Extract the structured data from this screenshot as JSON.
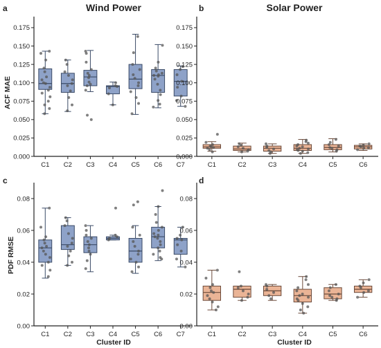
{
  "colors": {
    "wind_box": "#8ea2c8",
    "wind_edge": "#3a4a66",
    "solar_box": "#eab496",
    "solar_edge": "#6b4a3a",
    "point": "#555555"
  },
  "chart_data": [
    {
      "type": "box",
      "letter": "a",
      "title": "Wind Power",
      "ylabel": "ACF MAE",
      "xlabel": "",
      "ylim": [
        0,
        0.19
      ],
      "yticks": [
        "0.000",
        "0.025",
        "0.050",
        "0.075",
        "0.100",
        "0.125",
        "0.150",
        "0.175"
      ],
      "categories": [
        "C1",
        "C2",
        "C3",
        "C4",
        "C5",
        "C6",
        "C7"
      ],
      "style": "wind",
      "boxes": [
        {
          "min": 0.058,
          "q1": 0.091,
          "median": 0.099,
          "q3": 0.119,
          "max": 0.143,
          "points": [
            0.143,
            0.14,
            0.131,
            0.12,
            0.115,
            0.108,
            0.104,
            0.1,
            0.099,
            0.094,
            0.09,
            0.086,
            0.081,
            0.075,
            0.07,
            0.065,
            0.058
          ]
        },
        {
          "min": 0.061,
          "q1": 0.087,
          "median": 0.099,
          "q3": 0.113,
          "max": 0.131,
          "points": [
            0.131,
            0.125,
            0.115,
            0.11,
            0.104,
            0.099,
            0.096,
            0.089,
            0.08,
            0.07,
            0.062
          ]
        },
        {
          "min": 0.088,
          "q1": 0.096,
          "median": 0.108,
          "q3": 0.117,
          "max": 0.144,
          "points": [
            0.143,
            0.14,
            0.128,
            0.118,
            0.113,
            0.11,
            0.107,
            0.101,
            0.098,
            0.096,
            0.09,
            0.056,
            0.05
          ]
        },
        {
          "min": 0.07,
          "q1": 0.085,
          "median": 0.095,
          "q3": 0.096,
          "max": 0.101,
          "points": [
            0.1,
            0.096,
            0.095,
            0.093,
            0.085,
            0.07
          ]
        },
        {
          "min": 0.057,
          "q1": 0.092,
          "median": 0.105,
          "q3": 0.125,
          "max": 0.166,
          "points": [
            0.163,
            0.141,
            0.125,
            0.118,
            0.111,
            0.106,
            0.1,
            0.096,
            0.088,
            0.08,
            0.072,
            0.058
          ]
        },
        {
          "min": 0.066,
          "q1": 0.087,
          "median": 0.11,
          "q3": 0.118,
          "max": 0.152,
          "points": [
            0.151,
            0.128,
            0.12,
            0.116,
            0.113,
            0.111,
            0.11,
            0.109,
            0.105,
            0.098,
            0.09,
            0.084,
            0.076,
            0.071,
            0.067
          ]
        },
        {
          "min": 0.068,
          "q1": 0.082,
          "median": 0.102,
          "q3": 0.118,
          "max": 0.123,
          "points": [
            0.122,
            0.118,
            0.111,
            0.102,
            0.094,
            0.082,
            0.076,
            0.068
          ]
        }
      ]
    },
    {
      "type": "box",
      "letter": "b",
      "title": "Solar Power",
      "ylabel": "",
      "xlabel": "",
      "ylim": [
        0,
        0.19
      ],
      "yticks": [
        "0.000",
        "0.025",
        "0.050",
        "0.075",
        "0.100",
        "0.125",
        "0.150",
        "0.175"
      ],
      "categories": [
        "C1",
        "C2",
        "C3",
        "C4",
        "C5",
        "C6"
      ],
      "style": "solar",
      "boxes": [
        {
          "min": 0.007,
          "q1": 0.011,
          "median": 0.013,
          "q3": 0.016,
          "max": 0.02,
          "points": [
            0.03,
            0.019,
            0.016,
            0.014,
            0.013,
            0.012,
            0.011,
            0.009,
            0.006
          ]
        },
        {
          "min": 0.006,
          "q1": 0.008,
          "median": 0.01,
          "q3": 0.014,
          "max": 0.018,
          "points": [
            0.017,
            0.015,
            0.013,
            0.011,
            0.009,
            0.007,
            0.006
          ]
        },
        {
          "min": 0.004,
          "q1": 0.007,
          "median": 0.011,
          "q3": 0.014,
          "max": 0.017,
          "points": [
            0.017,
            0.014,
            0.012,
            0.01,
            0.008,
            0.006,
            0.004
          ]
        },
        {
          "min": 0.004,
          "q1": 0.008,
          "median": 0.011,
          "q3": 0.016,
          "max": 0.023,
          "points": [
            0.022,
            0.02,
            0.018,
            0.016,
            0.014,
            0.013,
            0.011,
            0.01,
            0.009,
            0.008,
            0.007,
            0.005,
            0.004
          ]
        },
        {
          "min": 0.006,
          "q1": 0.009,
          "median": 0.012,
          "q3": 0.016,
          "max": 0.024,
          "points": [
            0.023,
            0.019,
            0.016,
            0.014,
            0.012,
            0.011,
            0.009,
            0.007
          ]
        },
        {
          "min": 0.008,
          "q1": 0.01,
          "median": 0.013,
          "q3": 0.015,
          "max": 0.017,
          "points": [
            0.017,
            0.015,
            0.014,
            0.013,
            0.012,
            0.011,
            0.009
          ]
        }
      ]
    },
    {
      "type": "box",
      "letter": "c",
      "title": "",
      "ylabel": "PDF RMSE",
      "xlabel": "Cluster ID",
      "ylim": [
        0,
        0.09
      ],
      "yticks": [
        "0.00",
        "0.02",
        "0.04",
        "0.06",
        "0.08"
      ],
      "categories": [
        "C1",
        "C2",
        "C3",
        "C4",
        "C5",
        "C6",
        "C7"
      ],
      "style": "wind",
      "boxes": [
        {
          "min": 0.03,
          "q1": 0.04,
          "median": 0.049,
          "q3": 0.054,
          "max": 0.074,
          "points": [
            0.074,
            0.062,
            0.056,
            0.054,
            0.052,
            0.05,
            0.049,
            0.047,
            0.045,
            0.043,
            0.04,
            0.038,
            0.035,
            0.031
          ]
        },
        {
          "min": 0.038,
          "q1": 0.048,
          "median": 0.051,
          "q3": 0.063,
          "max": 0.068,
          "points": [
            0.068,
            0.066,
            0.063,
            0.058,
            0.055,
            0.052,
            0.05,
            0.047,
            0.044,
            0.04,
            0.038
          ]
        },
        {
          "min": 0.034,
          "q1": 0.046,
          "median": 0.051,
          "q3": 0.056,
          "max": 0.063,
          "points": [
            0.063,
            0.06,
            0.057,
            0.055,
            0.053,
            0.051,
            0.049,
            0.047,
            0.045,
            0.041,
            0.036
          ]
        },
        {
          "min": 0.054,
          "q1": 0.054,
          "median": 0.055,
          "q3": 0.056,
          "max": 0.057,
          "points": [
            0.074,
            0.057,
            0.056,
            0.055,
            0.054
          ]
        },
        {
          "min": 0.033,
          "q1": 0.04,
          "median": 0.047,
          "q3": 0.055,
          "max": 0.063,
          "points": [
            0.078,
            0.076,
            0.062,
            0.057,
            0.053,
            0.05,
            0.047,
            0.045,
            0.042,
            0.04,
            0.037,
            0.034
          ]
        },
        {
          "min": 0.041,
          "q1": 0.049,
          "median": 0.056,
          "q3": 0.062,
          "max": 0.075,
          "points": [
            0.085,
            0.075,
            0.07,
            0.065,
            0.062,
            0.06,
            0.058,
            0.057,
            0.056,
            0.055,
            0.053,
            0.051,
            0.049,
            0.047,
            0.045,
            0.043,
            0.042
          ]
        },
        {
          "min": 0.037,
          "q1": 0.045,
          "median": 0.054,
          "q3": 0.055,
          "max": 0.062,
          "points": [
            0.062,
            0.057,
            0.055,
            0.054,
            0.051,
            0.047,
            0.042,
            0.037
          ]
        }
      ]
    },
    {
      "type": "box",
      "letter": "d",
      "title": "",
      "ylabel": "",
      "xlabel": "Cluster ID",
      "ylim": [
        0,
        0.09
      ],
      "yticks": [
        "0.00",
        "0.02",
        "0.04",
        "0.06",
        "0.08"
      ],
      "categories": [
        "C1",
        "C2",
        "C3",
        "C4",
        "C5",
        "C6"
      ],
      "style": "solar",
      "boxes": [
        {
          "min": 0.01,
          "q1": 0.016,
          "median": 0.021,
          "q3": 0.025,
          "max": 0.035,
          "points": [
            0.035,
            0.03,
            0.026,
            0.024,
            0.022,
            0.021,
            0.019,
            0.017,
            0.015,
            0.012,
            0.01
          ]
        },
        {
          "min": 0.016,
          "q1": 0.018,
          "median": 0.023,
          "q3": 0.025,
          "max": 0.025,
          "points": [
            0.034,
            0.025,
            0.024,
            0.022,
            0.02,
            0.018,
            0.016
          ]
        },
        {
          "min": 0.016,
          "q1": 0.019,
          "median": 0.022,
          "q3": 0.025,
          "max": 0.026,
          "points": [
            0.026,
            0.025,
            0.023,
            0.021,
            0.019,
            0.017
          ]
        },
        {
          "min": 0.008,
          "q1": 0.015,
          "median": 0.019,
          "q3": 0.023,
          "max": 0.031,
          "points": [
            0.031,
            0.029,
            0.026,
            0.024,
            0.022,
            0.02,
            0.019,
            0.018,
            0.017,
            0.016,
            0.014,
            0.012,
            0.01,
            0.008
          ]
        },
        {
          "min": 0.016,
          "q1": 0.017,
          "median": 0.02,
          "q3": 0.024,
          "max": 0.026,
          "points": [
            0.026,
            0.024,
            0.022,
            0.02,
            0.019,
            0.018,
            0.017,
            0.016
          ]
        },
        {
          "min": 0.018,
          "q1": 0.021,
          "median": 0.023,
          "q3": 0.025,
          "max": 0.029,
          "points": [
            0.029,
            0.027,
            0.025,
            0.024,
            0.022,
            0.021,
            0.018
          ]
        }
      ]
    }
  ]
}
